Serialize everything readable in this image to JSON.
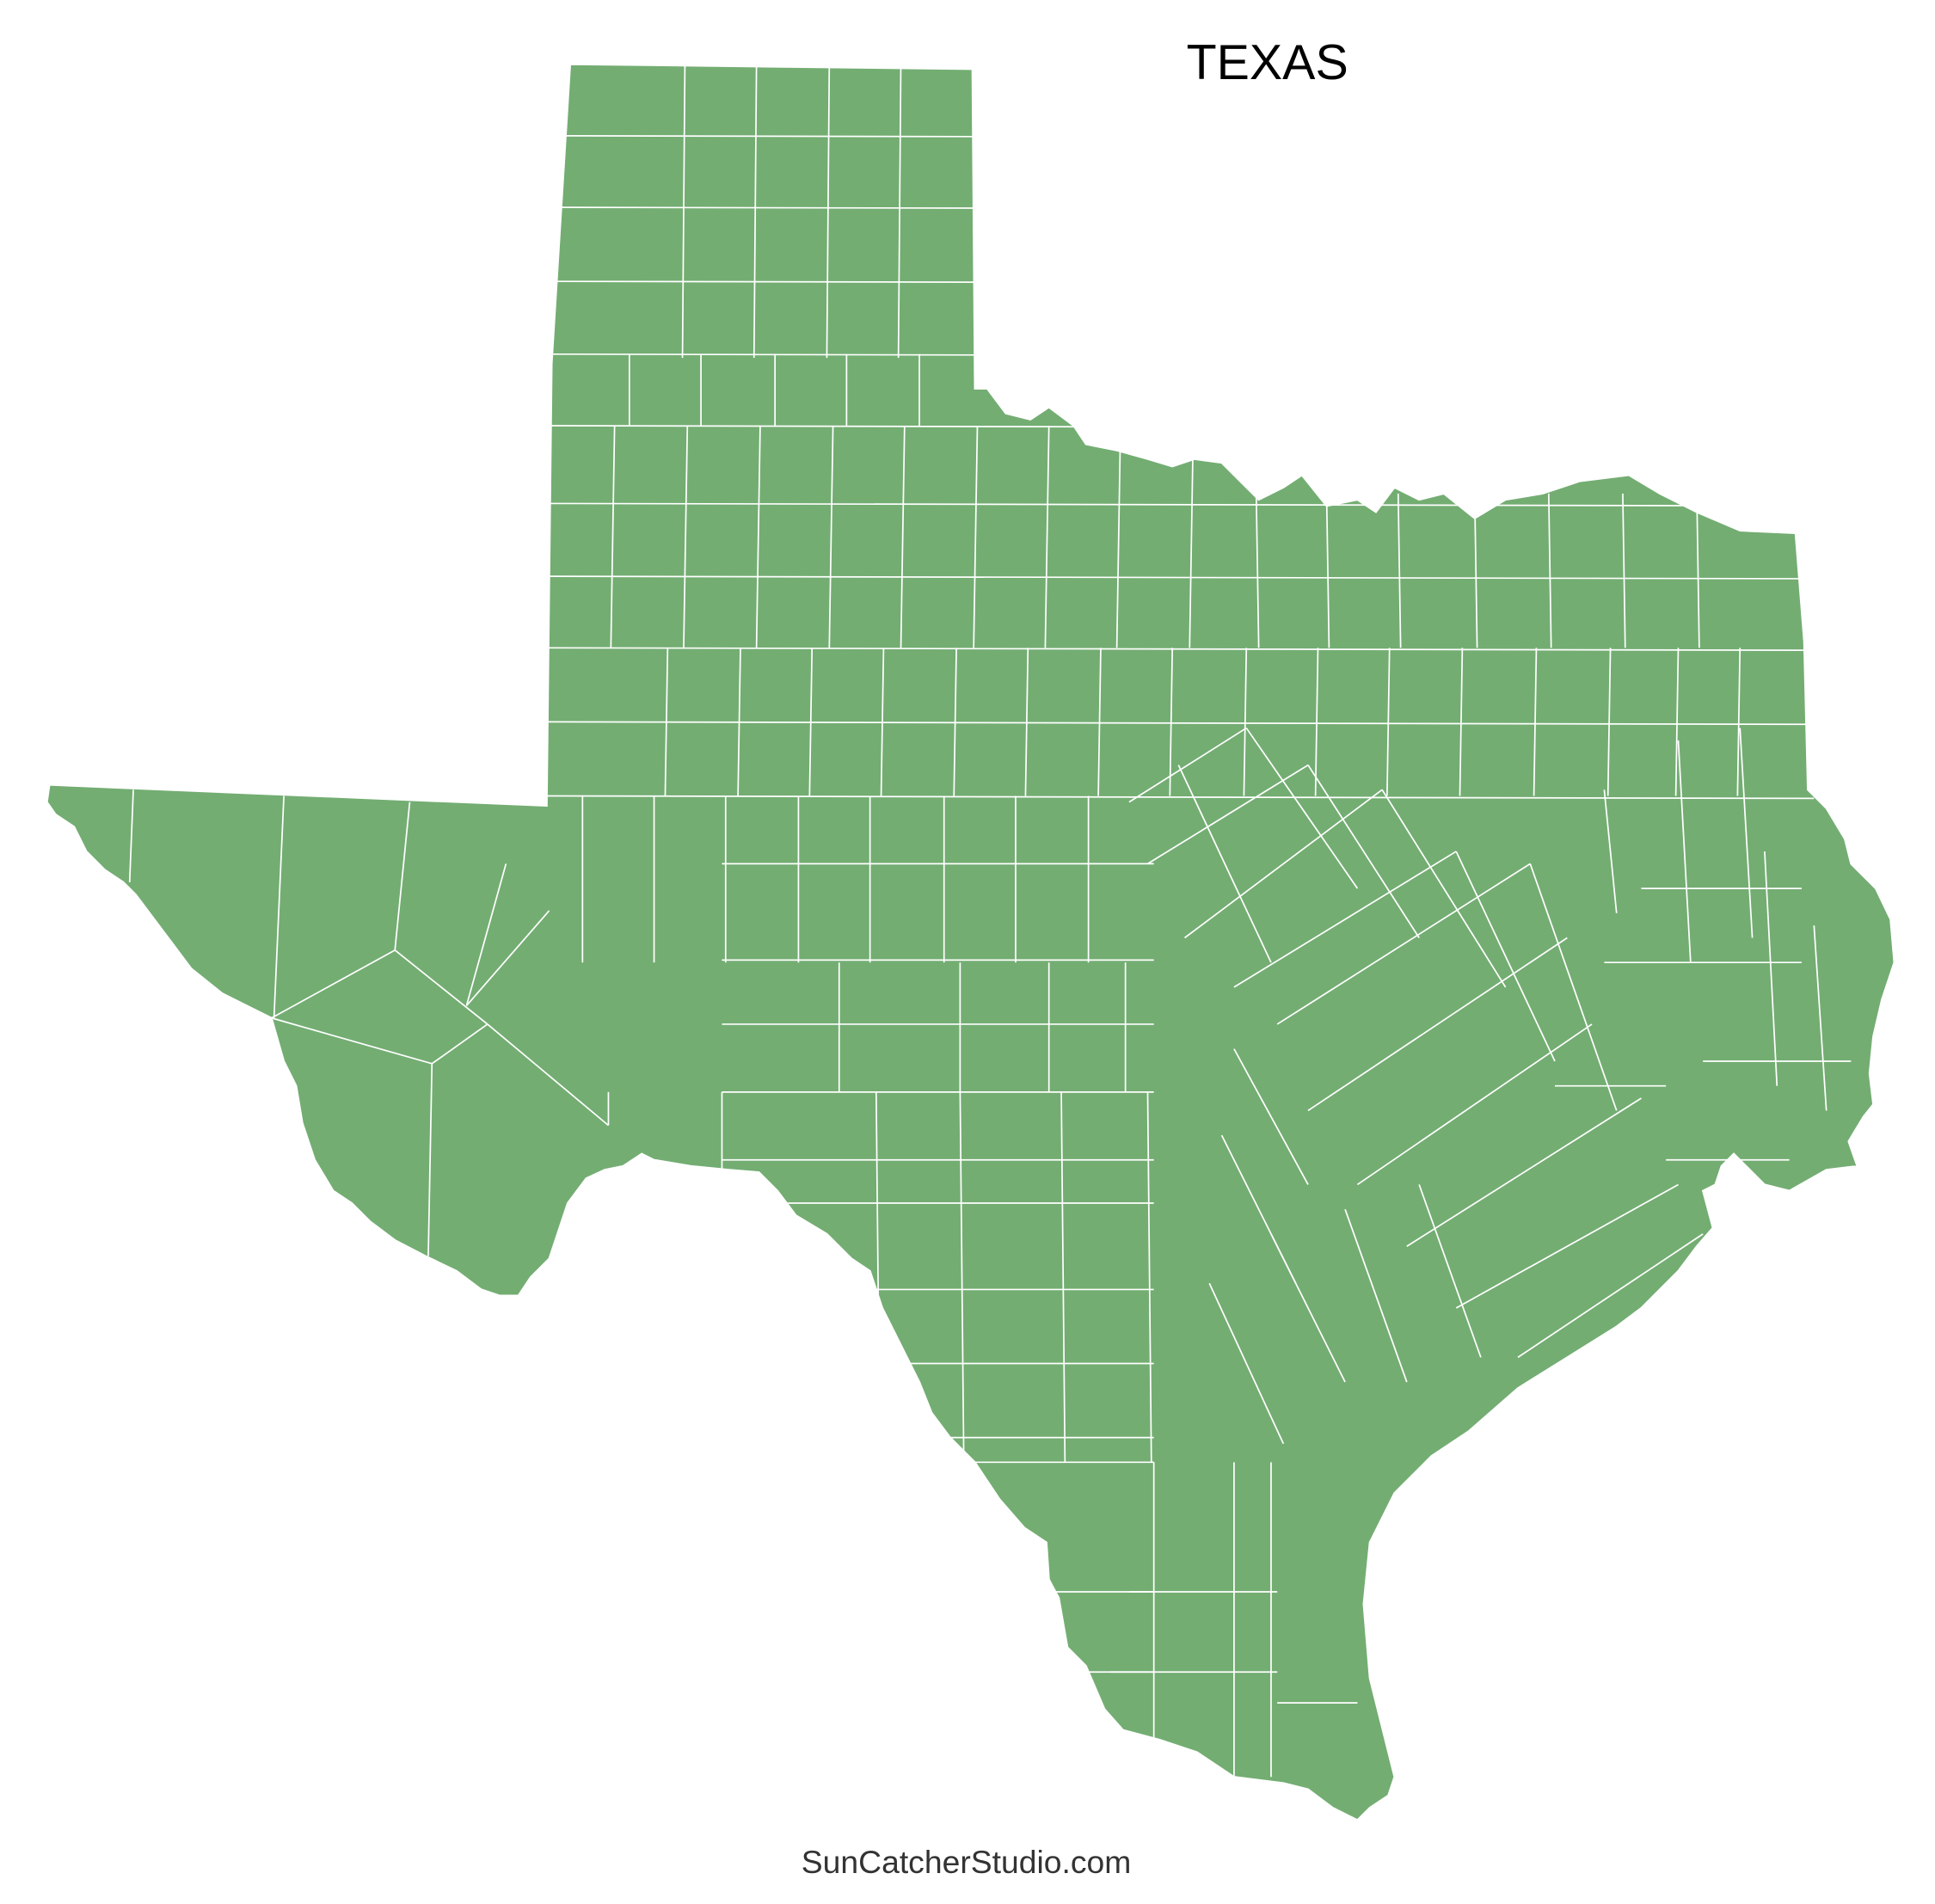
{
  "title": "TEXAS",
  "credit": "SunCatcherStudio.com",
  "map": {
    "region": "Texas",
    "subdivisions": "counties",
    "fill_color": "#73ad72",
    "border_color": "#ffffff",
    "background": "#ffffff"
  }
}
